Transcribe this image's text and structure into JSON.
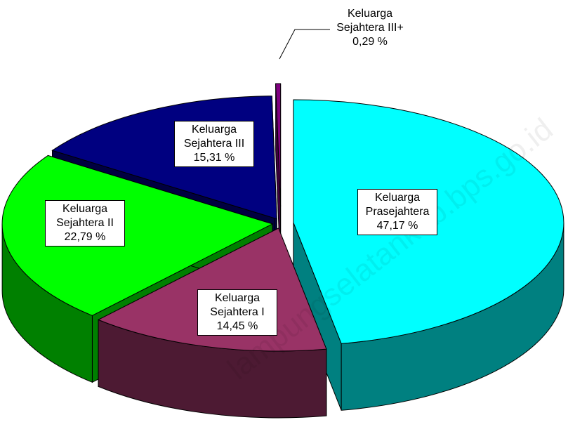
{
  "chart_data": {
    "type": "pie",
    "categories": [
      "Keluarga Prasejahtera",
      "Keluarga Sejahtera I",
      "Keluarga Sejahtera II",
      "Keluarga Sejahtera III",
      "Keluarga Sejahtera III+"
    ],
    "values": [
      47.17,
      14.45,
      22.79,
      15.31,
      0.29
    ],
    "value_labels": [
      "47,17 %",
      "14,45 %",
      "22,79 %",
      "15,31 %",
      "0,29 %"
    ],
    "colors": [
      "#00ffff",
      "#993366",
      "#00ff00",
      "#000080",
      "#800080"
    ]
  },
  "watermark": "lampungselatankab.bps.go.id"
}
